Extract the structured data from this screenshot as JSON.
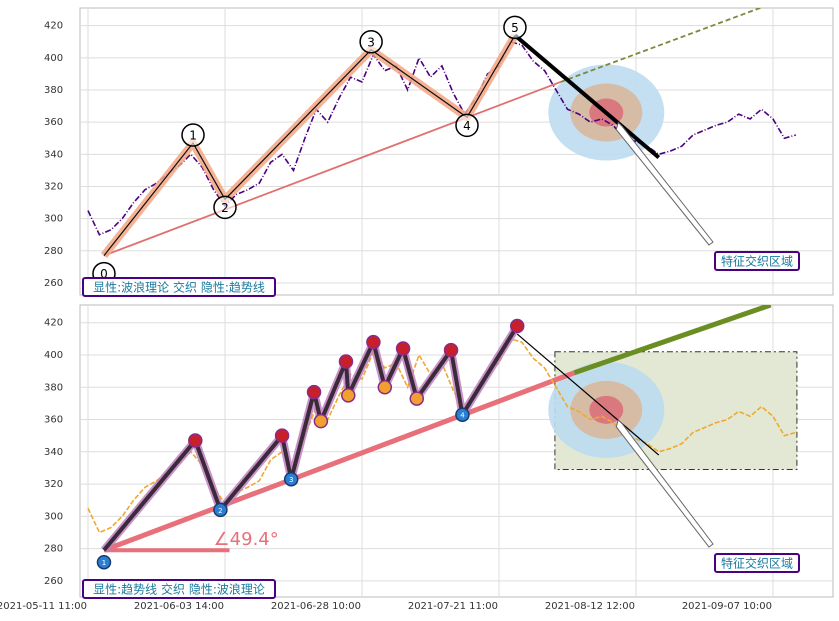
{
  "chart_data": [
    {
      "type": "line",
      "x": [
        0,
        5,
        10,
        15,
        20,
        25,
        30,
        35,
        40,
        45,
        50,
        55,
        60,
        65,
        70,
        75,
        80,
        85,
        90,
        95,
        100,
        105,
        110,
        115,
        120,
        125,
        130,
        135,
        140,
        145,
        150,
        155,
        160,
        165,
        170,
        175,
        180,
        185,
        190,
        195,
        200,
        205,
        210,
        215,
        220,
        225,
        230,
        235,
        240,
        245,
        250,
        255,
        260,
        265,
        270,
        275,
        280,
        285,
        290,
        295,
        300,
        305,
        310
      ],
      "series": [
        {
          "color": "#4b0082",
          "values": [
            305,
            290,
            293,
            300,
            310,
            318,
            322,
            328,
            333,
            340,
            332,
            318,
            308,
            315,
            318,
            322,
            335,
            340,
            330,
            350,
            368,
            360,
            375,
            388,
            385,
            402,
            392,
            395,
            380,
            400,
            388,
            395,
            378,
            365,
            375,
            390,
            395,
            410,
            408,
            398,
            392,
            380,
            368,
            365,
            360,
            362,
            358,
            350,
            348,
            345,
            340,
            342,
            345,
            352,
            355,
            358,
            360,
            365,
            362,
            368,
            362,
            350,
            352
          ]
        }
      ],
      "xlim": [
        -3.5,
        326.3
      ],
      "xticks": [
        0,
        60,
        120,
        180,
        240,
        300
      ],
      "ylim": [
        252.5,
        431
      ],
      "yticks": [
        260,
        280,
        300,
        320,
        340,
        360,
        380,
        400,
        420
      ],
      "grid": true,
      "waves": {
        "x": [
          7,
          46,
          60,
          124,
          166,
          187
        ],
        "values": [
          277,
          347,
          312,
          405,
          363,
          414
        ],
        "labels": [
          "0",
          "1",
          "2",
          "3",
          "4",
          "5"
        ],
        "color": "#f4a582"
      },
      "trend_line": {
        "x": [
          7,
          207,
          300
        ],
        "values": [
          277,
          385,
          434
        ],
        "colors": [
          "#e07070",
          "#7a8a3a"
        ]
      },
      "thrust_line": {
        "x": [
          187,
          250
        ],
        "values": [
          414,
          338
        ]
      },
      "zone": {
        "x": 227,
        "y": 366,
        "label": "特征交织区域"
      },
      "annotation": "显性:波浪理论 交织 隐性:趋势线"
    },
    {
      "type": "line",
      "x": [
        0,
        5,
        10,
        15,
        20,
        25,
        30,
        35,
        40,
        45,
        50,
        55,
        60,
        65,
        70,
        75,
        80,
        85,
        90,
        95,
        100,
        105,
        110,
        115,
        120,
        125,
        130,
        135,
        140,
        145,
        150,
        155,
        160,
        165,
        170,
        175,
        180,
        185,
        190,
        195,
        200,
        205,
        210,
        215,
        220,
        225,
        230,
        235,
        240,
        245,
        250,
        255,
        260,
        265,
        270,
        275,
        280,
        285,
        290,
        295,
        300,
        305,
        310
      ],
      "series": [
        {
          "color": "#f0a830",
          "values": [
            305,
            290,
            293,
            300,
            310,
            318,
            322,
            328,
            333,
            340,
            332,
            318,
            308,
            315,
            318,
            322,
            335,
            340,
            330,
            350,
            368,
            360,
            375,
            388,
            385,
            402,
            392,
            395,
            380,
            400,
            388,
            395,
            378,
            365,
            375,
            390,
            395,
            410,
            408,
            398,
            392,
            380,
            368,
            365,
            360,
            362,
            358,
            350,
            348,
            345,
            340,
            342,
            345,
            352,
            355,
            358,
            360,
            365,
            362,
            368,
            362,
            350,
            352
          ]
        }
      ],
      "xlim": [
        -3.5,
        326.3
      ],
      "xticks": [
        {
          "value": 0,
          "label": "2021-05-11 11:00"
        },
        {
          "value": 60,
          "label": "2021-06-03 14:00"
        },
        {
          "value": 120,
          "label": "2021-06-28 10:00"
        },
        {
          "value": 180,
          "label": "2021-07-21 11:00"
        },
        {
          "value": 240,
          "label": "2021-08-12 12:00"
        },
        {
          "value": 300,
          "label": "2021-09-07 10:00"
        }
      ],
      "ylim": [
        250,
        431
      ],
      "yticks": [
        260,
        280,
        300,
        320,
        340,
        360,
        380,
        400,
        420
      ],
      "grid": true,
      "waves": {
        "x": [
          7,
          47,
          58,
          85,
          89,
          99,
          102,
          113,
          114,
          125,
          130,
          138,
          144,
          159,
          164,
          188
        ],
        "values": [
          279,
          347,
          304,
          350,
          323,
          377,
          359,
          396,
          375,
          408,
          380,
          404,
          373,
          403,
          363,
          418
        ],
        "labels": [
          "1",
          null,
          "2",
          null,
          "3",
          null,
          null,
          null,
          null,
          null,
          null,
          null,
          null,
          null,
          "4",
          null
        ],
        "color": "#c080c0"
      },
      "trend_line": {
        "x": [
          7,
          213,
          299
        ],
        "values": [
          279,
          389,
          431
        ],
        "colors": [
          "#e8707a",
          "#6b8e23"
        ]
      },
      "angle_line": {
        "x": [
          7,
          62
        ],
        "values": [
          279,
          279
        ]
      },
      "angle_label": "∠49.4°",
      "thrust_line": {
        "x": [
          188,
          250
        ],
        "values": [
          413,
          338
        ]
      },
      "zone": {
        "x": 227,
        "y": 366,
        "label": "特征交织区域"
      },
      "zone_box": {
        "x": [
          204.5,
          310.5
        ],
        "values": [
          329,
          402
        ]
      },
      "annotation": "显性:趋势线 交织 隐性:波浪理论"
    }
  ]
}
